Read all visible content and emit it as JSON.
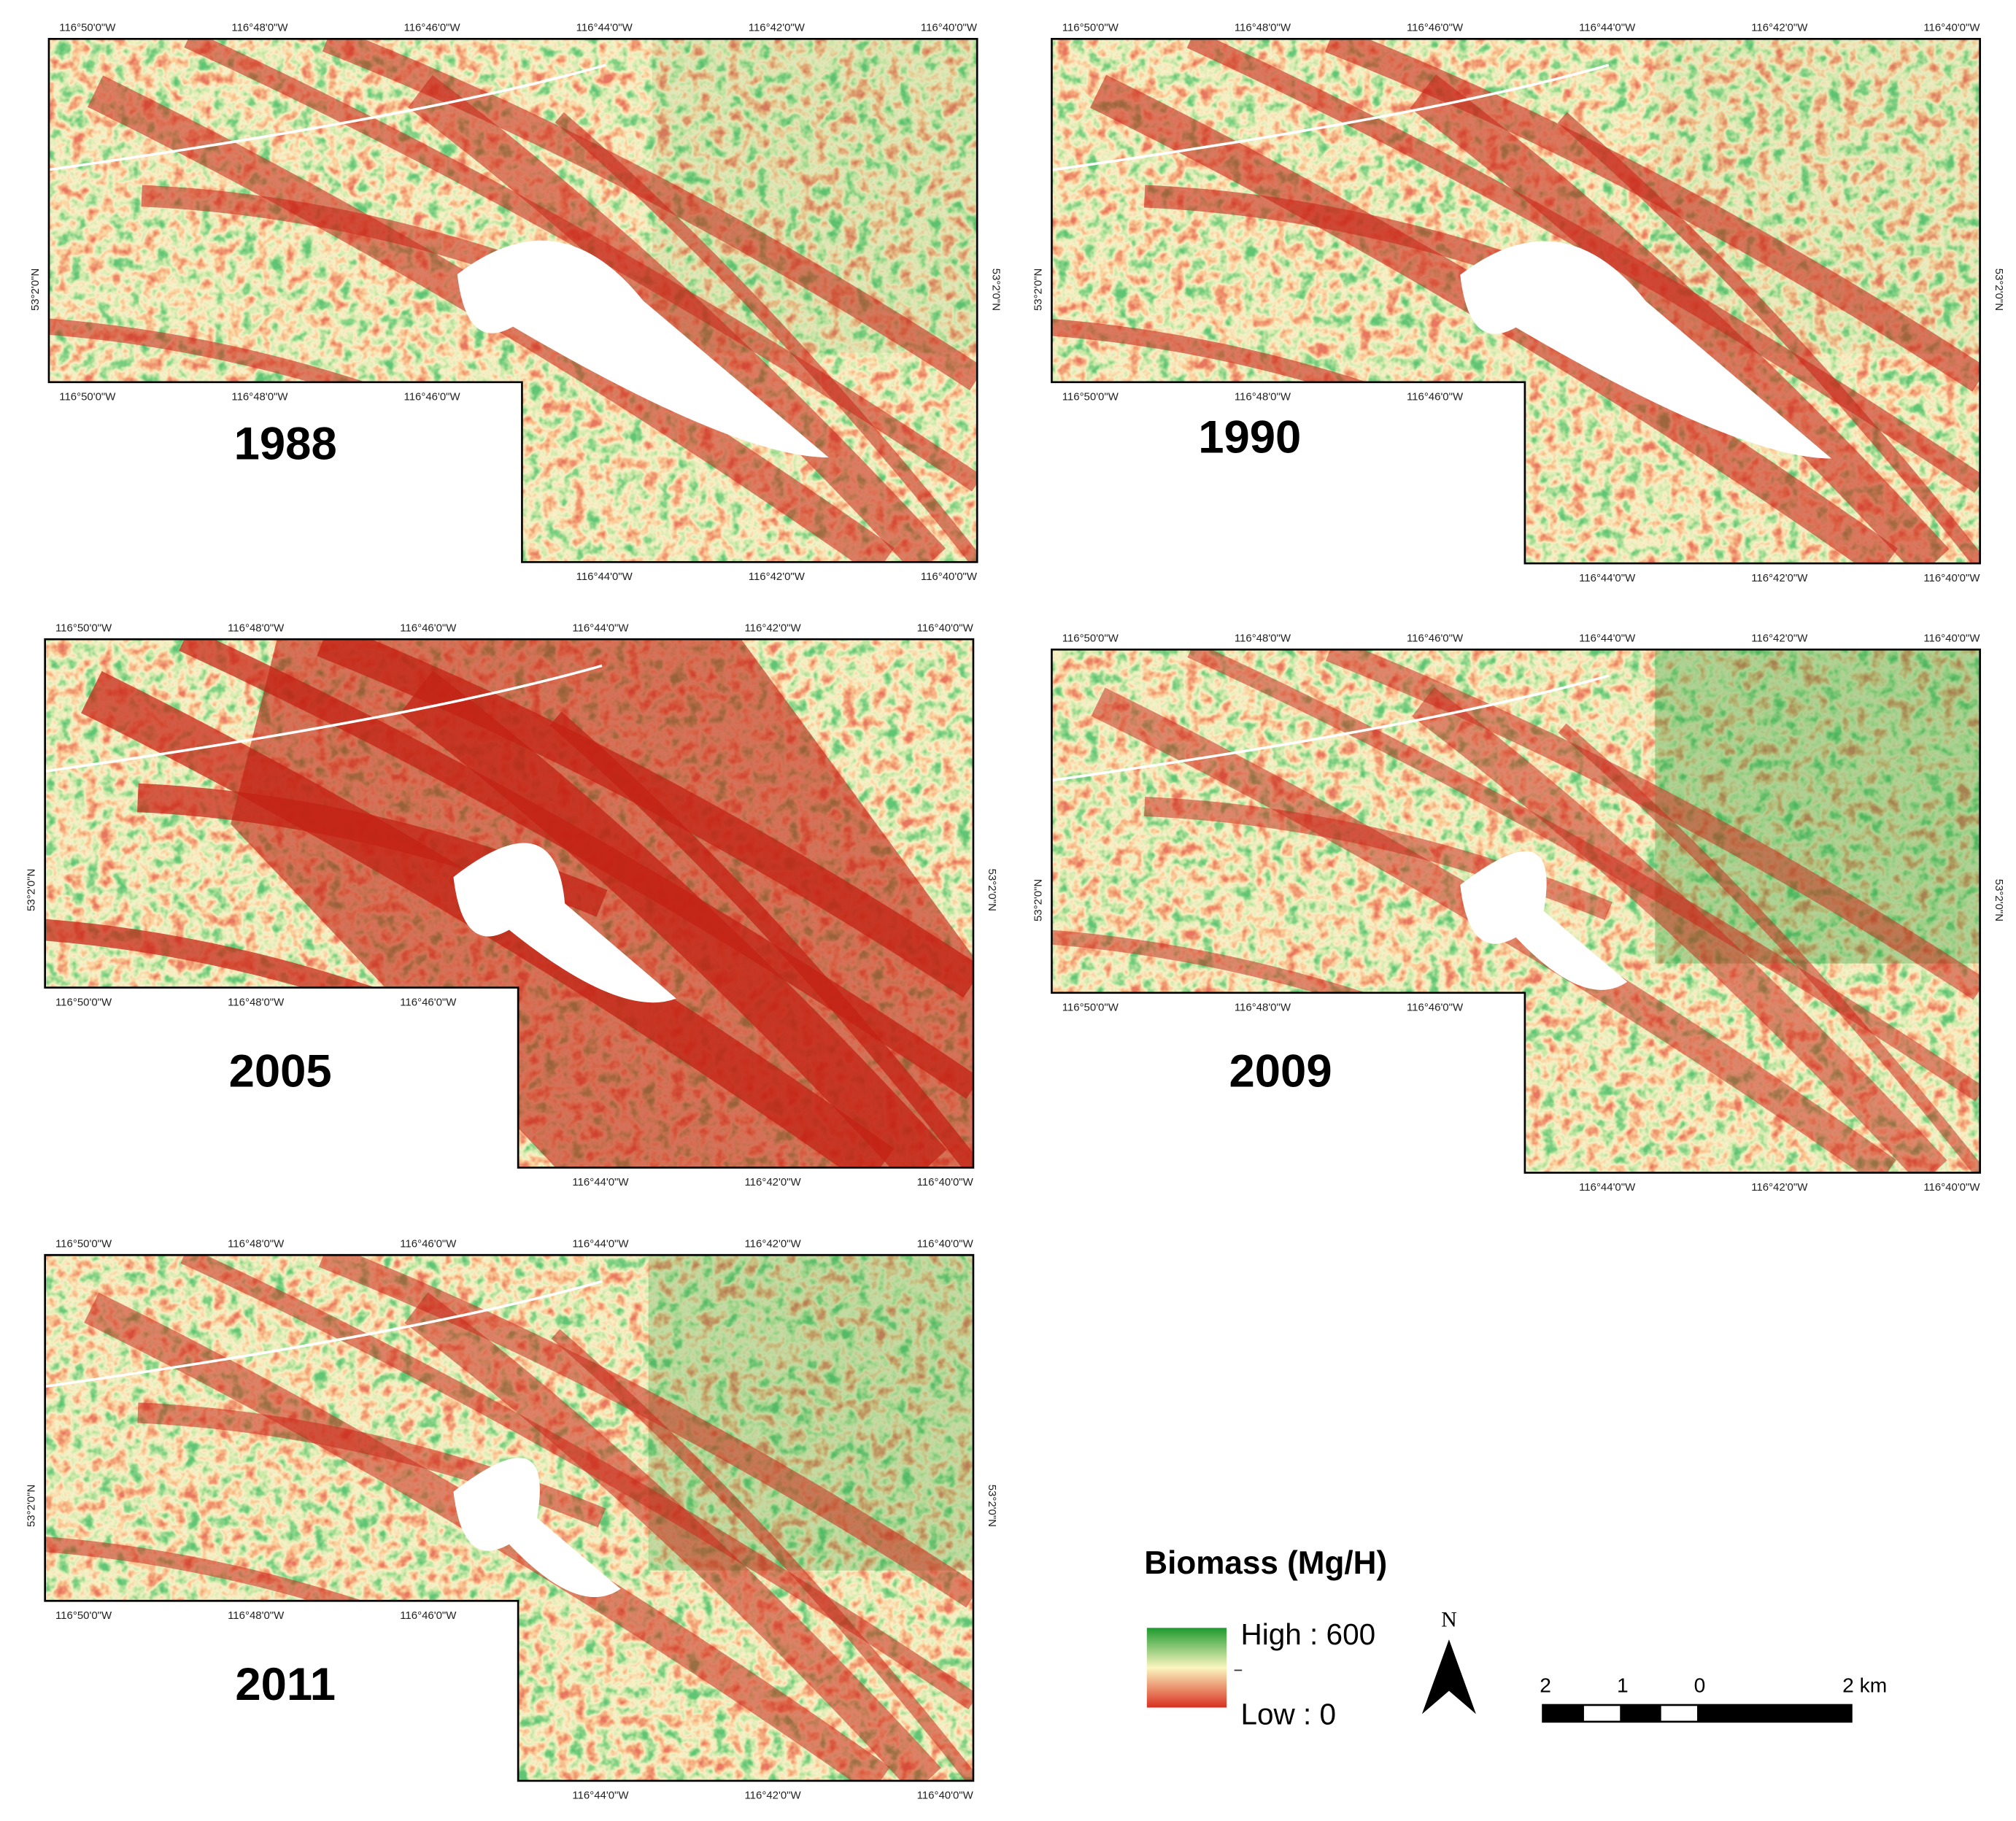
{
  "panels": [
    {
      "year": "1988"
    },
    {
      "year": "1990"
    },
    {
      "year": "2005"
    },
    {
      "year": "2009"
    },
    {
      "year": "2011"
    }
  ],
  "longitude_labels": [
    "116°50'0\"W",
    "116°48'0\"W",
    "116°46'0\"W",
    "116°44'0\"W",
    "116°42'0\"W",
    "116°40'0\"W"
  ],
  "latitude_label": "53°2'0\"N",
  "legend": {
    "title": "Biomass  (Mg/H)",
    "high": "High : 600",
    "low": "Low : 0"
  },
  "north": "N",
  "scale_bar": [
    "2",
    "1",
    "0",
    "2 km"
  ]
}
